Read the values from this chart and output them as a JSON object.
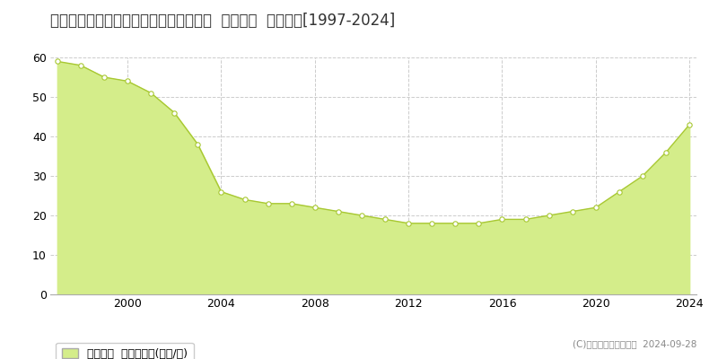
{
  "title": "福岡県福岡市東区多の津２丁目７番２２  基準地価  地価推移[1997-2024]",
  "years": [
    1997,
    1998,
    1999,
    2000,
    2001,
    2002,
    2003,
    2004,
    2005,
    2006,
    2007,
    2008,
    2009,
    2010,
    2011,
    2012,
    2013,
    2014,
    2015,
    2016,
    2017,
    2018,
    2019,
    2020,
    2021,
    2022,
    2023,
    2024
  ],
  "values": [
    59,
    58,
    55,
    54,
    51,
    46,
    38,
    26,
    24,
    23,
    23,
    22,
    21,
    20,
    19,
    18,
    18,
    18,
    18,
    19,
    19,
    20,
    21,
    22,
    26,
    30,
    36,
    43
  ],
  "fill_color": "#d4ed8a",
  "line_color": "#a8c832",
  "marker_color": "#ffffff",
  "marker_edge_color": "#a8c832",
  "background_color": "#ffffff",
  "grid_color": "#cccccc",
  "ylim": [
    0,
    60
  ],
  "yticks": [
    0,
    10,
    20,
    30,
    40,
    50,
    60
  ],
  "xtick_years": [
    2000,
    2004,
    2008,
    2012,
    2016,
    2020,
    2024
  ],
  "legend_label": "基準地価  平均坪単価(万円/坪)",
  "copyright_text": "(C)土地価格ドットコム  2024-09-28",
  "title_fontsize": 12,
  "axis_fontsize": 9,
  "legend_fontsize": 9
}
